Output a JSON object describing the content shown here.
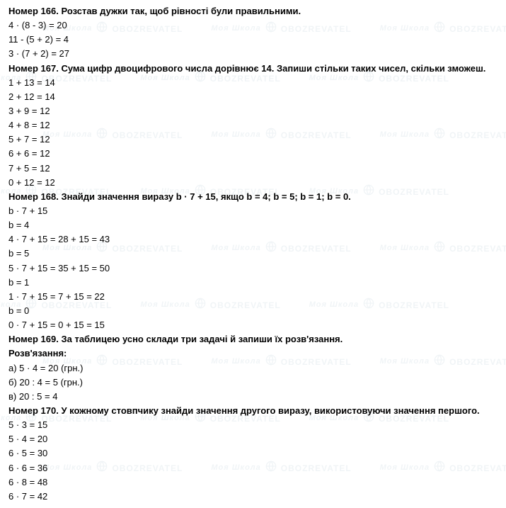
{
  "problems": [
    {
      "heading": "Номер 166. Розстав дужки так, щоб рівності були правильними.",
      "lines": [
        "4 · (8 - 3) = 20",
        "11 - (5 + 2) = 4",
        "3 · (7 + 2) = 27"
      ]
    },
    {
      "heading": "Номер 167. Сума цифр двоцифрового числа дорівнює 14. Запиши стільки таких чисел, скільки зможеш.",
      "lines": [
        "1 + 13 = 14",
        "2 + 12 = 14",
        "3 + 9 = 12",
        "4 + 8 = 12",
        "5 + 7 = 12",
        "6 + 6 = 12",
        "7 + 5 = 12",
        "0 + 12 = 12"
      ]
    },
    {
      "heading": "Номер 168. Знайди значення виразу b · 7 + 15, якщо b = 4; b = 5; b = 1; b = 0.",
      "lines": [
        "b · 7 + 15",
        "b = 4",
        "4 · 7 + 15 = 28 + 15 = 43",
        "b = 5",
        "5 · 7 + 15 = 35 + 15 = 50",
        "b = 1",
        "1 · 7 + 15 = 7 + 15 = 22",
        "b = 0",
        "0 · 7 + 15 = 0 + 15 = 15"
      ]
    },
    {
      "heading": "Номер 169. За таблицею усно склади три задачі й запиши їх розв'язання.",
      "lines": [
        "Розв'язання:",
        "а) 5 · 4 = 20 (грн.)",
        "б) 20 : 4 = 5 (грн.)",
        "в) 20 : 5 = 4"
      ]
    },
    {
      "heading": "Номер 170. У кожному стовпчику знайди значення другого виразу, використовуючи значення першого.",
      "lines": [
        "5 · 3 = 15",
        "5 · 4 = 20",
        "6 · 5 = 30",
        "6 · 6 = 36",
        "6 · 8 = 48",
        "6 · 7 = 42"
      ]
    }
  ],
  "watermark": {
    "text_small": "Моя Школа",
    "text_big": "OBOZREVATEL",
    "color": "#4a7a9a",
    "row_offsets": [
      30,
      100,
      180,
      260,
      340,
      420,
      500,
      580,
      650
    ]
  }
}
